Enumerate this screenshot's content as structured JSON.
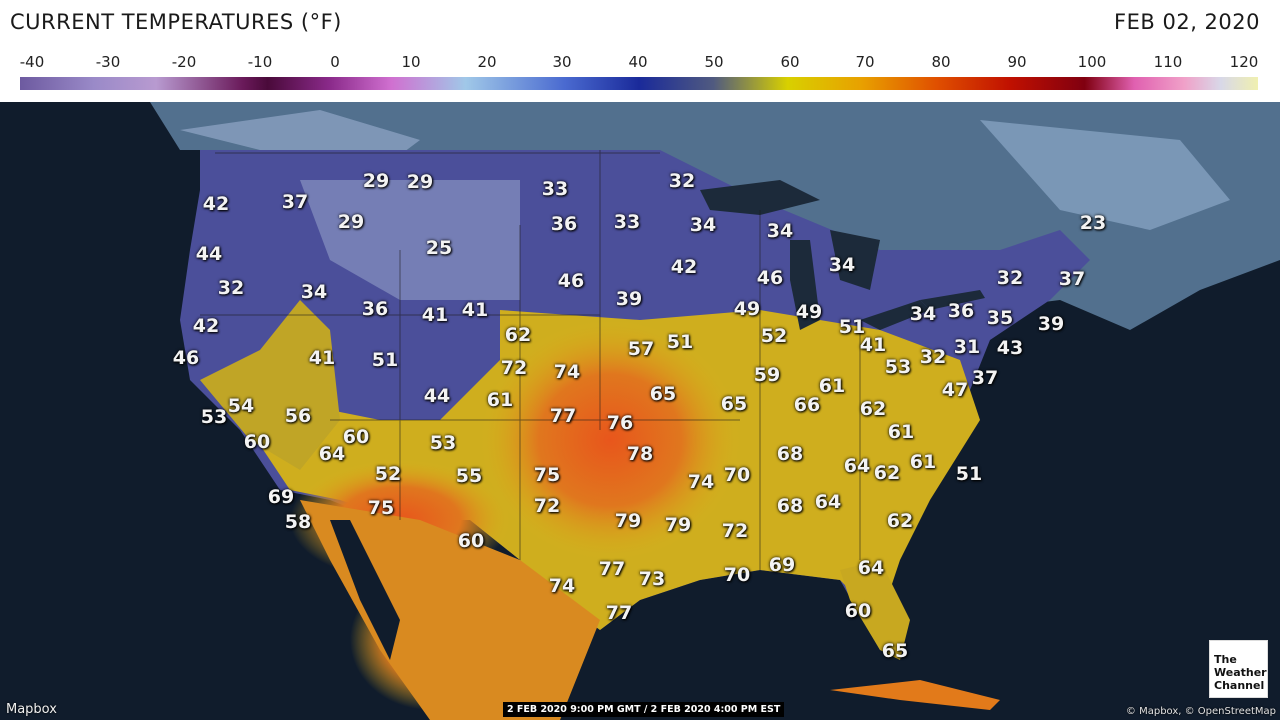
{
  "header": {
    "title": "CURRENT TEMPERATURES (°F)",
    "date": "FEB 02, 2020"
  },
  "scale": {
    "labels": [
      "-40",
      "-30",
      "-20",
      "-10",
      "0",
      "10",
      "20",
      "30",
      "40",
      "50",
      "60",
      "70",
      "80",
      "90",
      "100",
      "110",
      "120"
    ]
  },
  "temperatures": [
    "42",
    "37",
    "29",
    "29",
    "33",
    "32",
    "23",
    "44",
    "29",
    "36",
    "33",
    "34",
    "34",
    "32",
    "34",
    "25",
    "42",
    "46",
    "46",
    "34",
    "32",
    "37",
    "42",
    "36",
    "41",
    "41",
    "39",
    "49",
    "49",
    "34",
    "36",
    "35",
    "39",
    "46",
    "41",
    "51",
    "62",
    "57",
    "51",
    "52",
    "51",
    "41",
    "43",
    "72",
    "74",
    "59",
    "53",
    "32",
    "31",
    "37",
    "53",
    "54",
    "56",
    "44",
    "61",
    "65",
    "65",
    "61",
    "66",
    "47",
    "60",
    "60",
    "77",
    "76",
    "62",
    "61",
    "64",
    "53",
    "78",
    "68",
    "64",
    "62",
    "61",
    "51",
    "52",
    "55",
    "75",
    "74",
    "70",
    "69",
    "75",
    "72",
    "68",
    "64",
    "58",
    "79",
    "79",
    "72",
    "62",
    "60",
    "77",
    "73",
    "70",
    "69",
    "64",
    "74",
    "77",
    "60",
    "65"
  ],
  "footer": {
    "brand": "Mapbox",
    "timestamp": "2 FEB 2020 9:00 PM GMT / 2 FEB 2020 4:00 PM EST",
    "attribution": "© Mapbox, © OpenStreetMap"
  },
  "logo": {
    "line1": "The",
    "line2": "Weather",
    "line3": "Channel"
  }
}
